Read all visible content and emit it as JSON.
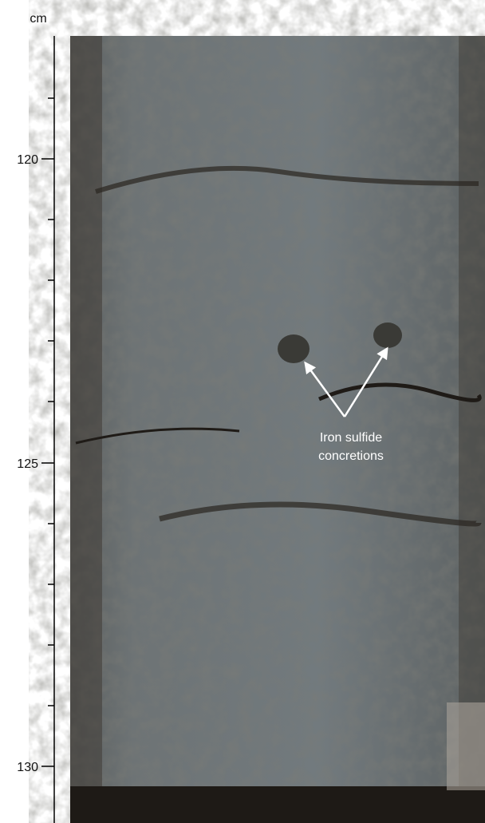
{
  "scale": {
    "unit": "cm",
    "labels": [
      120,
      125,
      130
    ]
  },
  "annotation": {
    "lines": [
      "Iron sulfide",
      "concretions"
    ]
  }
}
